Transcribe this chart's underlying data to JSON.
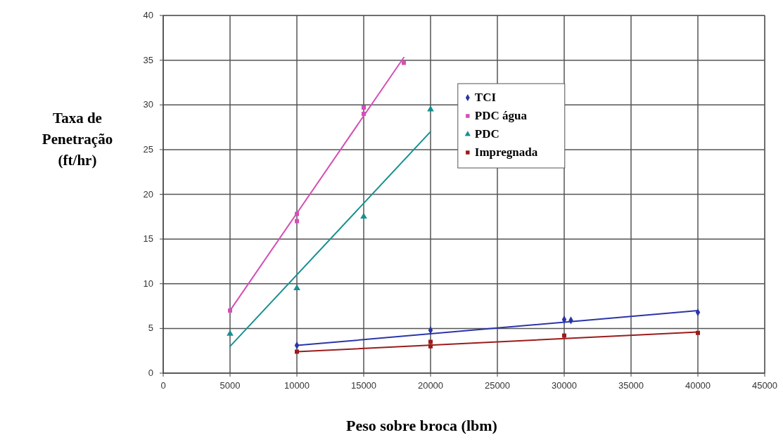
{
  "chart_data": {
    "type": "scatter",
    "xlabel": "Peso sobre broca (lbm)",
    "ylabel": "Taxa de Penetração (ft/hr)",
    "xlim": [
      0,
      45000
    ],
    "ylim": [
      0,
      40
    ],
    "xticks": [
      0,
      5000,
      10000,
      15000,
      20000,
      25000,
      30000,
      35000,
      40000,
      45000
    ],
    "yticks": [
      0,
      5,
      10,
      15,
      20,
      25,
      30,
      35,
      40
    ],
    "grid": true,
    "legend": "top right",
    "series": [
      {
        "name": "TCI",
        "color": "#2b35a8",
        "marker": "diamond",
        "x": [
          10000,
          20000,
          30000,
          30500,
          40000
        ],
        "values": [
          3.1,
          4.8,
          6,
          5.9,
          6.8
        ]
      },
      {
        "name": "PDC água",
        "color": "#d54fb5",
        "marker": "square",
        "x": [
          5000,
          10000,
          10000,
          15000,
          15000,
          18000
        ],
        "values": [
          7,
          17.8,
          17,
          29.7,
          29,
          34.7
        ]
      },
      {
        "name": "PDC",
        "color": "#17908f",
        "marker": "triangle",
        "x": [
          5000,
          10000,
          15000,
          20000
        ],
        "values": [
          4.4,
          9.5,
          17.5,
          29.5
        ]
      },
      {
        "name": "Impregnada",
        "color": "#9b1c1c",
        "marker": "square",
        "x": [
          10000,
          20000,
          20000,
          30000,
          40000
        ],
        "values": [
          2.4,
          3.5,
          3,
          4.2,
          4.5
        ]
      },
      {
        "type": "line",
        "color": "#2b35a8",
        "marker": "none",
        "x": [
          10000,
          40000
        ],
        "values": [
          3.1,
          7
        ]
      },
      {
        "type": "line",
        "color": "#d54fb5",
        "marker": "none",
        "x": [
          5000,
          18000
        ],
        "values": [
          7,
          35.3
        ]
      },
      {
        "type": "line",
        "color": "#17908f",
        "marker": "none",
        "x": [
          5000,
          20000
        ],
        "values": [
          3,
          27
        ]
      },
      {
        "type": "line",
        "color": "#9b1c1c",
        "marker": "none",
        "x": [
          10000,
          40000
        ],
        "values": [
          2.4,
          4.6
        ]
      }
    ]
  }
}
